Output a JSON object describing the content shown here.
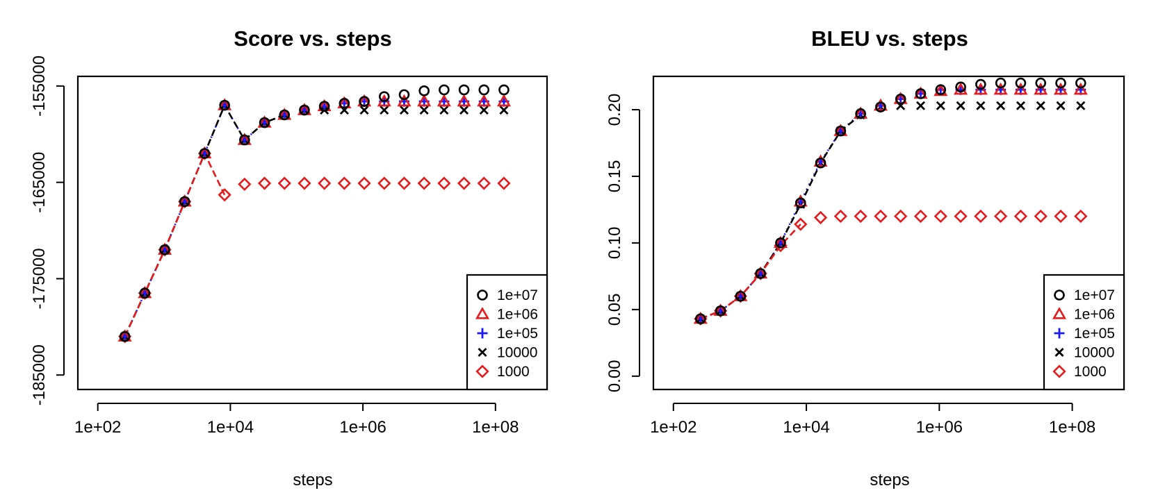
{
  "colors": {
    "1e+07": "#000000",
    "1e+06": "#e41a1c",
    "1e+05": "#1a1aff",
    "10000": "#000000",
    "1000": "#e41a1c"
  },
  "chart_data": [
    {
      "type": "scatter",
      "title": "Score vs. steps",
      "xlabel": "steps",
      "ylabel": "",
      "x_scale": "log10",
      "xlim": [
        50,
        600000000
      ],
      "ylim": [
        -186500,
        -154000
      ],
      "x_ticks": [
        100,
        10000,
        1000000,
        100000000
      ],
      "x_tick_labels": [
        "1e+02",
        "1e+04",
        "1e+06",
        "1e+08"
      ],
      "y_ticks": [
        -185000,
        -175000,
        -165000,
        -155000
      ],
      "y_tick_labels": [
        "-185000",
        "-175000",
        "-165000",
        "-155000"
      ],
      "legend": {
        "position": "bottom-right",
        "entries": [
          {
            "label": "1e+07",
            "marker": "circle"
          },
          {
            "label": "1e+06",
            "marker": "triangle"
          },
          {
            "label": "1e+05",
            "marker": "plus"
          },
          {
            "label": "10000",
            "marker": "x"
          },
          {
            "label": "1000",
            "marker": "diamond"
          }
        ]
      },
      "x": [
        256,
        512,
        1024,
        2048,
        4096,
        8192,
        16384,
        32768,
        65536,
        131072,
        262144,
        524288,
        1048576,
        2097152,
        4194304,
        8388608,
        16777216,
        33554432,
        67108864,
        134217728
      ],
      "series": [
        {
          "name": "1e+07",
          "marker": "circle",
          "values": [
            -181000,
            -176500,
            -172000,
            -167000,
            -162000,
            -157000,
            -160600,
            -158800,
            -158000,
            -157500,
            -157100,
            -156800,
            -156600,
            -156100,
            -155900,
            -155500,
            -155400,
            -155400,
            -155400,
            -155400
          ]
        },
        {
          "name": "1e+06",
          "marker": "triangle",
          "values": [
            -181000,
            -176500,
            -172000,
            -167000,
            -162000,
            -157000,
            -160600,
            -158800,
            -158000,
            -157500,
            -157100,
            -156800,
            -156600,
            -156600,
            -156600,
            -156600,
            -156600,
            -156600,
            -156600,
            -156600
          ]
        },
        {
          "name": "1e+05",
          "marker": "plus",
          "values": [
            -181000,
            -176500,
            -172000,
            -167000,
            -162000,
            -157000,
            -160600,
            -158800,
            -158000,
            -157500,
            -157100,
            -156800,
            -156600,
            -156600,
            -156600,
            -156600,
            -156600,
            -156600,
            -156600,
            -156600
          ]
        },
        {
          "name": "10000",
          "marker": "x",
          "values": [
            -181000,
            -176500,
            -172000,
            -167000,
            -162000,
            -157000,
            -160600,
            -158800,
            -158000,
            -157500,
            -157500,
            -157500,
            -157500,
            -157500,
            -157500,
            -157500,
            -157500,
            -157500,
            -157500,
            -157500
          ]
        },
        {
          "name": "1000",
          "marker": "diamond",
          "values": [
            -181000,
            -176500,
            -172000,
            -167000,
            -162000,
            -166300,
            -165200,
            -165100,
            -165100,
            -165100,
            -165100,
            -165100,
            -165100,
            -165100,
            -165100,
            -165100,
            -165100,
            -165100,
            -165100,
            -165100
          ]
        }
      ]
    },
    {
      "type": "scatter",
      "title": "BLEU vs. steps",
      "xlabel": "steps",
      "ylabel": "",
      "x_scale": "log10",
      "xlim": [
        50,
        600000000
      ],
      "ylim": [
        -0.01,
        0.225
      ],
      "x_ticks": [
        100,
        10000,
        1000000,
        100000000
      ],
      "x_tick_labels": [
        "1e+02",
        "1e+04",
        "1e+06",
        "1e+08"
      ],
      "y_ticks": [
        0.0,
        0.05,
        0.1,
        0.15,
        0.2
      ],
      "y_tick_labels": [
        "0.00",
        "0.05",
        "0.10",
        "0.15",
        "0.20"
      ],
      "legend": {
        "position": "bottom-right",
        "entries": [
          {
            "label": "1e+07",
            "marker": "circle"
          },
          {
            "label": "1e+06",
            "marker": "triangle"
          },
          {
            "label": "1e+05",
            "marker": "plus"
          },
          {
            "label": "10000",
            "marker": "x"
          },
          {
            "label": "1000",
            "marker": "diamond"
          }
        ]
      },
      "x": [
        256,
        512,
        1024,
        2048,
        4096,
        8192,
        16384,
        32768,
        65536,
        131072,
        262144,
        524288,
        1048576,
        2097152,
        4194304,
        8388608,
        16777216,
        33554432,
        67108864,
        134217728
      ],
      "series": [
        {
          "name": "1e+07",
          "marker": "circle",
          "values": [
            0.043,
            0.049,
            0.06,
            0.077,
            0.1,
            0.13,
            0.16,
            0.184,
            0.197,
            0.202,
            0.208,
            0.212,
            0.215,
            0.217,
            0.219,
            0.22,
            0.22,
            0.22,
            0.22,
            0.22
          ]
        },
        {
          "name": "1e+06",
          "marker": "triangle",
          "values": [
            0.043,
            0.049,
            0.06,
            0.077,
            0.1,
            0.131,
            0.161,
            0.184,
            0.197,
            0.203,
            0.208,
            0.212,
            0.214,
            0.215,
            0.215,
            0.215,
            0.215,
            0.215,
            0.215,
            0.215
          ]
        },
        {
          "name": "1e+05",
          "marker": "plus",
          "values": [
            0.043,
            0.049,
            0.06,
            0.077,
            0.1,
            0.131,
            0.161,
            0.184,
            0.197,
            0.203,
            0.208,
            0.212,
            0.215,
            0.215,
            0.215,
            0.215,
            0.215,
            0.215,
            0.215,
            0.215
          ]
        },
        {
          "name": "10000",
          "marker": "x",
          "values": [
            0.043,
            0.049,
            0.06,
            0.077,
            0.1,
            0.129,
            0.16,
            0.184,
            0.196,
            0.202,
            0.203,
            0.203,
            0.203,
            0.203,
            0.203,
            0.203,
            0.203,
            0.203,
            0.203,
            0.203
          ]
        },
        {
          "name": "1000",
          "marker": "diamond",
          "values": [
            0.043,
            0.049,
            0.06,
            0.077,
            0.098,
            0.114,
            0.119,
            0.12,
            0.12,
            0.12,
            0.12,
            0.12,
            0.12,
            0.12,
            0.12,
            0.12,
            0.12,
            0.12,
            0.12,
            0.12
          ]
        }
      ]
    }
  ]
}
